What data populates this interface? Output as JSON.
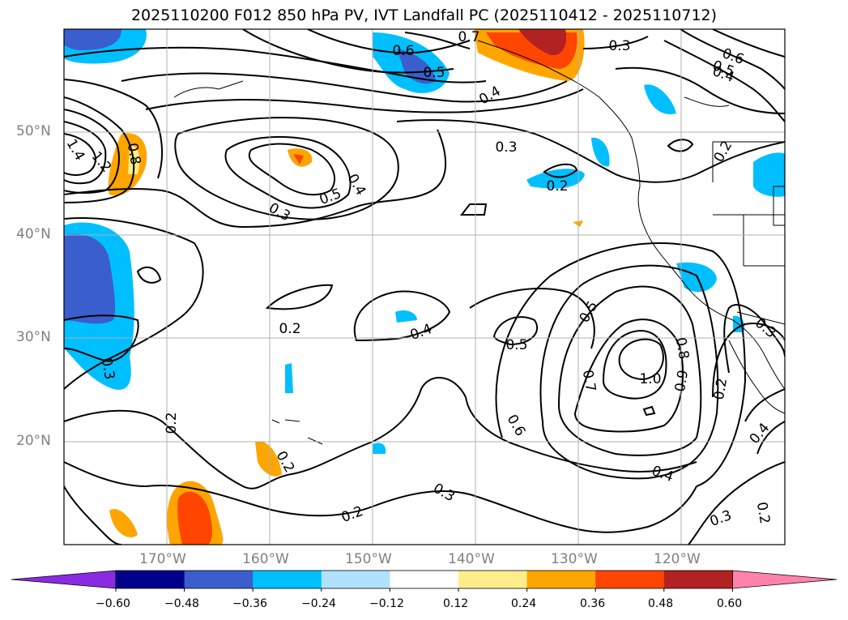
{
  "title": "2025110200 F012 850 hPa PV, IVT Landfall PC (2025110412 - 2025110712)",
  "lat_labels": [
    "50°N",
    "40°N",
    "30°N",
    "20°N"
  ],
  "lon_labels": [
    "170°W",
    "160°W",
    "150°W",
    "140°W",
    "130°W",
    "120°W"
  ],
  "contour_labels": [
    "0.6",
    "0.5",
    "0.4",
    "0.3",
    "0.6",
    "0.5",
    "0.4",
    "0.3",
    "0.2",
    "0.5",
    "0.4",
    "0.3",
    "1.4",
    "1.2",
    "0.8",
    "0.2",
    "0.4",
    "0.5",
    "0.5",
    "0.7",
    "0.8",
    "1.0",
    "0.9",
    "0.6",
    "0.4",
    "0.3",
    "0.2",
    "0.2",
    "0.2",
    "0.2",
    "0.3",
    "0.2",
    "0.4",
    "0.3",
    "0.2",
    "0.3",
    "0.7"
  ],
  "colorbar": {
    "ticks": [
      "−0.60",
      "−0.48",
      "−0.36",
      "−0.24",
      "−0.12",
      "0.12",
      "0.24",
      "0.36",
      "0.48",
      "0.60"
    ],
    "colors": [
      "#8a2be2",
      "#00008b",
      "#3a5fcd",
      "#00bfff",
      "#b0e2ff",
      "#ffffff",
      "#ffec8b",
      "#ffa500",
      "#ff4500",
      "#b22222",
      "#ff82ab"
    ]
  }
}
